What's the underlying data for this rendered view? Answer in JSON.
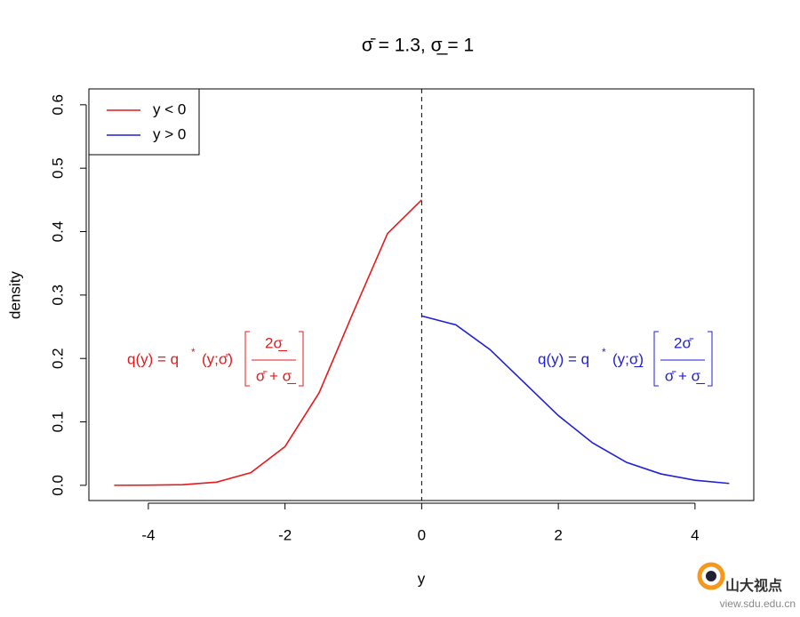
{
  "chart_data": {
    "type": "line",
    "title": "σ̄ = 1.3, σ̲ = 1",
    "x_label": "y",
    "y_label": "density",
    "series": [
      {
        "name": "y < 0",
        "color": "#e41a1c",
        "x": [
          -4.5,
          -4,
          -3.5,
          -3,
          -2.5,
          -2,
          -1.5,
          -1,
          -0.5,
          0
        ],
        "values": [
          0,
          0.0002,
          0.001,
          0.005,
          0.02,
          0.061,
          0.146,
          0.273,
          0.397,
          0.45
        ]
      },
      {
        "name": "y > 0",
        "color": "#1f1fd6",
        "x": [
          0,
          0.5,
          1,
          1.5,
          2,
          2.5,
          3,
          3.5,
          4,
          4.5
        ],
        "values": [
          0.267,
          0.253,
          0.214,
          0.162,
          0.11,
          0.067,
          0.036,
          0.018,
          0.008,
          0.003
        ]
      }
    ],
    "vline": 0,
    "xlim": [
      -4.87,
      4.86
    ],
    "xticks": [
      -4,
      -2,
      0,
      2,
      4
    ],
    "ylim": [
      -0.024,
      0.625
    ],
    "yticks": [
      {
        "value": 0,
        "label": "0.0"
      },
      0.1,
      0.2,
      0.3,
      0.4,
      0.5,
      0.6
    ],
    "legend": "top-left",
    "annotations": [
      {
        "lhs": "q(y) = q",
        "star": "*",
        "arg": "(y;σ̄)",
        "numerator": "2σ̲",
        "denominator": "σ̄ + σ̲"
      },
      {
        "lhs": "q(y) = q",
        "star": "*",
        "arg": "(y;σ̲)",
        "numerator": "2σ̄",
        "denominator": "σ̄ + σ̲"
      }
    ]
  },
  "watermark": {
    "name": "山大视点",
    "url": "view.sdu.edu.cn"
  }
}
